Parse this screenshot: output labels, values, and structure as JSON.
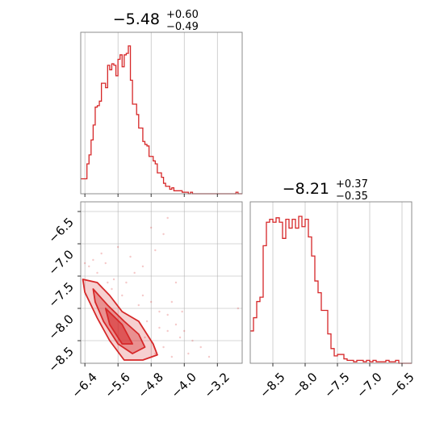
{
  "colors": {
    "accent": "#d62728",
    "grid": "#b0b0b0",
    "frame": "#808080"
  },
  "chart_data": [
    {
      "type": "histogram",
      "panel": "top-left",
      "title": {
        "value": "−5.48",
        "plus": "+0.60",
        "minus": "−0.49"
      },
      "xlim": [
        -6.5,
        -2.6
      ],
      "x_ticks": [
        -6.4,
        -5.6,
        -4.8,
        -4.0,
        -3.2
      ],
      "bins": [
        [
          -6.5,
          -6.45,
          0.1
        ],
        [
          -6.45,
          -6.4,
          0.1
        ],
        [
          -6.4,
          -6.35,
          0.1
        ],
        [
          -6.35,
          -6.3,
          0.2
        ],
        [
          -6.3,
          -6.25,
          0.26
        ],
        [
          -6.25,
          -6.2,
          0.36
        ],
        [
          -6.2,
          -6.15,
          0.46
        ],
        [
          -6.15,
          -6.1,
          0.58
        ],
        [
          -6.1,
          -6.05,
          0.59
        ],
        [
          -6.05,
          -6.0,
          0.62
        ],
        [
          -6.0,
          -5.95,
          0.74
        ],
        [
          -5.95,
          -5.9,
          0.74
        ],
        [
          -5.9,
          -5.85,
          0.71
        ],
        [
          -5.85,
          -5.8,
          0.86
        ],
        [
          -5.8,
          -5.75,
          0.83
        ],
        [
          -5.75,
          -5.7,
          0.87
        ],
        [
          -5.7,
          -5.65,
          0.86
        ],
        [
          -5.65,
          -5.6,
          0.79
        ],
        [
          -5.6,
          -5.55,
          0.9
        ],
        [
          -5.55,
          -5.5,
          0.93
        ],
        [
          -5.5,
          -5.45,
          0.85
        ],
        [
          -5.45,
          -5.4,
          0.93
        ],
        [
          -5.4,
          -5.35,
          0.94
        ],
        [
          -5.35,
          -5.3,
          0.99
        ],
        [
          -5.3,
          -5.25,
          0.76
        ],
        [
          -5.25,
          -5.2,
          0.6
        ],
        [
          -5.2,
          -5.15,
          0.6
        ],
        [
          -5.15,
          -5.1,
          0.53
        ],
        [
          -5.1,
          -5.05,
          0.44
        ],
        [
          -5.05,
          -5.0,
          0.44
        ],
        [
          -5.0,
          -4.95,
          0.35
        ],
        [
          -4.95,
          -4.9,
          0.33
        ],
        [
          -4.9,
          -4.85,
          0.32
        ],
        [
          -4.85,
          -4.8,
          0.25
        ],
        [
          -4.8,
          -4.75,
          0.25
        ],
        [
          -4.75,
          -4.7,
          0.22
        ],
        [
          -4.7,
          -4.65,
          0.2
        ],
        [
          -4.65,
          -4.6,
          0.14
        ],
        [
          -4.6,
          -4.55,
          0.14
        ],
        [
          -4.55,
          -4.5,
          0.11
        ],
        [
          -4.5,
          -4.45,
          0.07
        ],
        [
          -4.45,
          -4.4,
          0.05
        ],
        [
          -4.4,
          -4.35,
          0.05
        ],
        [
          -4.35,
          -4.3,
          0.03
        ],
        [
          -4.3,
          -4.25,
          0.04
        ],
        [
          -4.25,
          -4.2,
          0.02
        ],
        [
          -4.2,
          -4.15,
          0.02
        ],
        [
          -4.15,
          -4.1,
          0.02
        ],
        [
          -4.1,
          -4.05,
          0.02
        ],
        [
          -4.05,
          -4.0,
          0.01
        ],
        [
          -4.0,
          -3.95,
          0.01
        ],
        [
          -3.95,
          -3.9,
          0.01
        ],
        [
          -3.9,
          -3.85,
          0.0
        ],
        [
          -3.85,
          -3.8,
          0.01
        ],
        [
          -3.8,
          -3.75,
          0.0
        ],
        [
          -3.75,
          -3.7,
          0.0
        ],
        [
          -3.7,
          -3.65,
          0.0
        ],
        [
          -3.65,
          -3.6,
          0.0
        ],
        [
          -3.6,
          -3.55,
          0.0
        ],
        [
          -3.55,
          -3.5,
          0.0
        ],
        [
          -3.5,
          -3.45,
          0.0
        ],
        [
          -3.45,
          -3.4,
          0.0
        ],
        [
          -3.4,
          -3.35,
          0.0
        ],
        [
          -3.35,
          -3.3,
          0.0
        ],
        [
          -3.3,
          -3.25,
          0.0
        ],
        [
          -3.25,
          -3.2,
          0.0
        ],
        [
          -3.2,
          -3.15,
          0.0
        ],
        [
          -3.15,
          -3.1,
          0.0
        ],
        [
          -3.1,
          -3.05,
          0.0
        ],
        [
          -3.05,
          -3.0,
          0.0
        ],
        [
          -3.0,
          -2.95,
          0.0
        ],
        [
          -2.95,
          -2.9,
          0.0
        ],
        [
          -2.9,
          -2.85,
          0.0
        ],
        [
          -2.85,
          -2.8,
          0.0
        ],
        [
          -2.8,
          -2.75,
          0.0
        ],
        [
          -2.75,
          -2.7,
          0.01
        ],
        [
          -2.7,
          -2.65,
          0.0
        ],
        [
          -2.65,
          -2.6,
          0.0
        ]
      ]
    },
    {
      "type": "scatter+contour",
      "panel": "bottom-left",
      "xlim": [
        -6.5,
        -2.6
      ],
      "ylim": [
        -8.85,
        -6.35
      ],
      "x_ticks": [
        -6.4,
        -5.6,
        -4.8,
        -4.0,
        -3.2
      ],
      "x_tick_labels": [
        "−6.4",
        "−5.6",
        "−4.8",
        "−4.0",
        "−3.2"
      ],
      "y_ticks": [
        -6.5,
        -7.0,
        -7.5,
        -8.0,
        -8.5
      ],
      "y_tick_labels": [
        "−6.5",
        "−7.0",
        "−7.5",
        "−8.0",
        "−8.5"
      ],
      "contours": [
        [
          [
            -6.45,
            -7.55
          ],
          [
            -6.1,
            -7.6
          ],
          [
            -5.8,
            -7.8
          ],
          [
            -5.5,
            -8.05
          ],
          [
            -5.1,
            -8.2
          ],
          [
            -4.75,
            -8.55
          ],
          [
            -4.65,
            -8.72
          ],
          [
            -5.0,
            -8.8
          ],
          [
            -5.45,
            -8.8
          ],
          [
            -5.8,
            -8.5
          ],
          [
            -6.1,
            -8.15
          ],
          [
            -6.4,
            -7.75
          ]
        ],
        [
          [
            -6.2,
            -7.7
          ],
          [
            -5.85,
            -7.95
          ],
          [
            -5.45,
            -8.2
          ],
          [
            -5.1,
            -8.4
          ],
          [
            -4.95,
            -8.6
          ],
          [
            -5.25,
            -8.7
          ],
          [
            -5.6,
            -8.55
          ],
          [
            -5.95,
            -8.2
          ],
          [
            -6.15,
            -7.9
          ]
        ],
        [
          [
            -5.9,
            -8.0
          ],
          [
            -5.5,
            -8.25
          ],
          [
            -5.25,
            -8.55
          ],
          [
            -5.5,
            -8.55
          ],
          [
            -5.8,
            -8.25
          ]
        ]
      ],
      "points": [
        [
          -6.3,
          -7.35
        ],
        [
          -6.1,
          -7.45
        ],
        [
          -5.9,
          -7.3
        ],
        [
          -5.7,
          -7.55
        ],
        [
          -5.4,
          -7.6
        ],
        [
          -5.2,
          -7.45
        ],
        [
          -5.0,
          -7.8
        ],
        [
          -4.8,
          -7.9
        ],
        [
          -4.6,
          -8.05
        ],
        [
          -4.4,
          -8.1
        ],
        [
          -4.2,
          -8.25
        ],
        [
          -4.0,
          -8.35
        ],
        [
          -3.8,
          -8.5
        ],
        [
          -3.6,
          -8.6
        ],
        [
          -5.3,
          -7.2
        ],
        [
          -5.0,
          -7.35
        ],
        [
          -4.7,
          -7.1
        ],
        [
          -4.5,
          -6.85
        ],
        [
          -4.4,
          -6.6
        ],
        [
          -4.8,
          -6.75
        ],
        [
          -5.6,
          -7.05
        ],
        [
          -6.0,
          -7.15
        ],
        [
          -4.3,
          -7.9
        ],
        [
          -4.1,
          -8.45
        ],
        [
          -3.9,
          -8.7
        ],
        [
          -4.5,
          -8.6
        ],
        [
          -4.3,
          -8.75
        ],
        [
          -5.1,
          -7.95
        ],
        [
          -4.9,
          -8.2
        ],
        [
          -4.6,
          -8.3
        ],
        [
          -3.4,
          -8.75
        ],
        [
          -2.7,
          -8.0
        ],
        [
          -4.2,
          -7.6
        ],
        [
          -5.5,
          -7.8
        ],
        [
          -5.75,
          -7.7
        ],
        [
          -4.95,
          -8.45
        ],
        [
          -4.7,
          -8.7
        ],
        [
          -4.4,
          -8.35
        ],
        [
          -6.4,
          -7.3
        ],
        [
          -6.2,
          -7.25
        ],
        [
          -5.85,
          -7.6
        ],
        [
          -4.05,
          -8.05
        ]
      ]
    },
    {
      "type": "histogram",
      "panel": "bottom-right",
      "title": {
        "value": "−8.21",
        "plus": "+0.37",
        "minus": "−0.35"
      },
      "xlim": [
        -8.85,
        -6.35
      ],
      "x_ticks": [
        -8.5,
        -8.0,
        -7.5,
        -7.0,
        -6.5
      ],
      "x_tick_labels": [
        "−8.5",
        "−8.0",
        "−7.5",
        "−7.0",
        "−6.5"
      ],
      "bins": [
        [
          -8.85,
          -8.8,
          0.22
        ],
        [
          -8.8,
          -8.75,
          0.31
        ],
        [
          -8.75,
          -8.7,
          0.42
        ],
        [
          -8.7,
          -8.65,
          0.45
        ],
        [
          -8.65,
          -8.6,
          0.8
        ],
        [
          -8.6,
          -8.55,
          0.96
        ],
        [
          -8.55,
          -8.5,
          0.98
        ],
        [
          -8.5,
          -8.45,
          0.96
        ],
        [
          -8.45,
          -8.4,
          0.99
        ],
        [
          -8.4,
          -8.35,
          0.96
        ],
        [
          -8.35,
          -8.3,
          0.85
        ],
        [
          -8.3,
          -8.25,
          0.98
        ],
        [
          -8.25,
          -8.2,
          0.92
        ],
        [
          -8.2,
          -8.15,
          0.98
        ],
        [
          -8.15,
          -8.1,
          0.92
        ],
        [
          -8.1,
          -8.05,
          1.0
        ],
        [
          -8.05,
          -8.0,
          0.93
        ],
        [
          -8.0,
          -7.95,
          0.98
        ],
        [
          -7.95,
          -7.9,
          0.86
        ],
        [
          -7.9,
          -7.85,
          0.73
        ],
        [
          -7.85,
          -7.8,
          0.56
        ],
        [
          -7.8,
          -7.75,
          0.48
        ],
        [
          -7.75,
          -7.7,
          0.36
        ],
        [
          -7.7,
          -7.65,
          0.36
        ],
        [
          -7.65,
          -7.6,
          0.2
        ],
        [
          -7.6,
          -7.55,
          0.1
        ],
        [
          -7.55,
          -7.5,
          0.05
        ],
        [
          -7.5,
          -7.45,
          0.06
        ],
        [
          -7.45,
          -7.4,
          0.06
        ],
        [
          -7.4,
          -7.35,
          0.03
        ],
        [
          -7.35,
          -7.3,
          0.02
        ],
        [
          -7.3,
          -7.25,
          0.02
        ],
        [
          -7.25,
          -7.2,
          0.01
        ],
        [
          -7.2,
          -7.15,
          0.02
        ],
        [
          -7.15,
          -7.1,
          0.02
        ],
        [
          -7.1,
          -7.05,
          0.01
        ],
        [
          -7.05,
          -7.0,
          0.02
        ],
        [
          -7.0,
          -6.95,
          0.01
        ],
        [
          -6.95,
          -6.9,
          0.02
        ],
        [
          -6.9,
          -6.85,
          0.01
        ],
        [
          -6.85,
          -6.8,
          0.01
        ],
        [
          -6.8,
          -6.75,
          0.01
        ],
        [
          -6.75,
          -6.7,
          0.02
        ],
        [
          -6.7,
          -6.65,
          0.01
        ],
        [
          -6.65,
          -6.6,
          0.01
        ],
        [
          -6.6,
          -6.55,
          0.02
        ],
        [
          -6.55,
          -6.5,
          0.0
        ],
        [
          -6.5,
          -6.45,
          0.0
        ],
        [
          -6.45,
          -6.4,
          0.0
        ],
        [
          -6.4,
          -6.35,
          0.0
        ]
      ]
    }
  ]
}
